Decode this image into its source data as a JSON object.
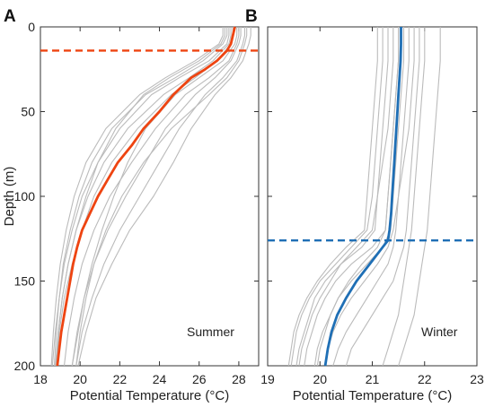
{
  "chart_data": [
    {
      "type": "line",
      "panel_letter": "A",
      "season": "Summer",
      "xlabel": "Potential Temperature (°C)",
      "ylabel": "Depth (m)",
      "xlim": [
        18,
        29
      ],
      "ylim": [
        200,
        0
      ],
      "xticks": [
        "18",
        "20",
        "22",
        "24",
        "26",
        "28"
      ],
      "yticks": [
        "0",
        "50",
        "100",
        "150",
        "200"
      ],
      "colors": {
        "mean": "#ee4411",
        "individual": "#bbbbbb",
        "threshold": "#ee4411"
      },
      "threshold_depth": 14,
      "mean_profile": {
        "depth": [
          0,
          5,
          10,
          14,
          20,
          25,
          30,
          40,
          50,
          60,
          70,
          80,
          90,
          100,
          110,
          120,
          130,
          140,
          150,
          160,
          170,
          180,
          190,
          200
        ],
        "temperature": [
          27.8,
          27.7,
          27.6,
          27.4,
          26.9,
          26.3,
          25.6,
          24.7,
          24.0,
          23.2,
          22.6,
          21.9,
          21.4,
          20.9,
          20.5,
          20.1,
          19.85,
          19.65,
          19.5,
          19.35,
          19.2,
          19.05,
          18.95,
          18.85
        ]
      },
      "profiles": [
        {
          "depth": [
            0,
            5,
            10,
            20,
            30,
            40,
            60,
            80,
            100,
            120,
            140,
            160,
            180,
            200
          ],
          "temperature": [
            27.5,
            27.5,
            27.4,
            26.5,
            25.0,
            23.6,
            22.0,
            20.9,
            20.1,
            19.6,
            19.2,
            18.95,
            18.75,
            18.6
          ]
        },
        {
          "depth": [
            0,
            5,
            10,
            20,
            30,
            40,
            60,
            80,
            100,
            120,
            140,
            160,
            180,
            200
          ],
          "temperature": [
            28.0,
            28.0,
            27.9,
            27.5,
            26.5,
            25.3,
            23.8,
            22.6,
            21.5,
            20.7,
            20.1,
            19.7,
            19.4,
            19.2
          ]
        },
        {
          "depth": [
            0,
            5,
            10,
            20,
            30,
            40,
            60,
            80,
            100,
            120,
            140,
            160,
            180,
            200
          ],
          "temperature": [
            28.3,
            28.3,
            28.2,
            27.9,
            27.2,
            26.3,
            25.0,
            24.0,
            23.0,
            22.0,
            21.2,
            20.6,
            20.1,
            19.8
          ]
        },
        {
          "depth": [
            0,
            5,
            10,
            20,
            30,
            40,
            60,
            80,
            100,
            120,
            140,
            160,
            180,
            200
          ],
          "temperature": [
            27.2,
            27.2,
            27.0,
            25.8,
            24.3,
            23.0,
            21.3,
            20.3,
            19.7,
            19.3,
            19.0,
            18.8,
            18.65,
            18.55
          ]
        },
        {
          "depth": [
            0,
            5,
            10,
            20,
            30,
            40,
            60,
            80,
            100,
            120,
            140,
            160,
            180,
            200
          ],
          "temperature": [
            28.6,
            28.6,
            28.5,
            28.2,
            27.6,
            26.8,
            25.6,
            24.7,
            23.7,
            22.5,
            21.6,
            20.8,
            20.3,
            19.9
          ]
        },
        {
          "depth": [
            0,
            5,
            10,
            20,
            30,
            40,
            60,
            80,
            100,
            120,
            140,
            160,
            180,
            200
          ],
          "temperature": [
            27.7,
            27.7,
            27.6,
            26.9,
            25.8,
            24.6,
            22.9,
            21.6,
            20.7,
            20.1,
            19.6,
            19.2,
            18.95,
            18.8
          ]
        },
        {
          "depth": [
            0,
            5,
            10,
            20,
            30,
            40,
            60,
            80,
            100,
            120,
            140,
            160,
            180,
            200
          ],
          "temperature": [
            27.9,
            27.9,
            27.8,
            27.2,
            26.0,
            24.8,
            23.3,
            22.4,
            21.7,
            21.1,
            20.6,
            20.2,
            19.9,
            19.6
          ]
        },
        {
          "depth": [
            0,
            5,
            10,
            20,
            30,
            40,
            60,
            80,
            100,
            120,
            140,
            160,
            180,
            200
          ],
          "temperature": [
            27.4,
            27.4,
            27.2,
            26.2,
            24.8,
            23.3,
            21.6,
            20.6,
            19.95,
            19.5,
            19.15,
            18.95,
            18.8,
            18.7
          ]
        },
        {
          "depth": [
            0,
            5,
            10,
            20,
            30,
            40,
            60,
            80,
            100,
            120,
            140,
            160,
            180,
            200
          ],
          "temperature": [
            28.1,
            28.1,
            28.0,
            27.6,
            26.8,
            25.8,
            24.3,
            23.3,
            22.3,
            21.4,
            20.7,
            20.2,
            19.85,
            19.6
          ]
        },
        {
          "depth": [
            0,
            5,
            10,
            20,
            30,
            40,
            60,
            80,
            100,
            120,
            140,
            160,
            180,
            200
          ],
          "temperature": [
            27.6,
            27.6,
            27.5,
            26.7,
            25.5,
            24.2,
            22.4,
            21.2,
            20.4,
            19.8,
            19.4,
            19.1,
            18.9,
            18.75
          ]
        },
        {
          "depth": [
            0,
            5,
            10,
            20,
            30,
            40,
            60,
            80,
            100,
            120,
            140,
            160,
            180,
            200
          ],
          "temperature": [
            28.4,
            28.4,
            28.3,
            28.0,
            27.4,
            26.5,
            24.6,
            23.2,
            22.1,
            21.3,
            20.7,
            20.3,
            20.0,
            19.8
          ]
        },
        {
          "depth": [
            0,
            5,
            10,
            20,
            30,
            40,
            60,
            80,
            100,
            120,
            140,
            160,
            180,
            200
          ],
          "temperature": [
            27.3,
            27.3,
            27.1,
            26.0,
            24.5,
            23.2,
            21.8,
            20.9,
            20.3,
            19.8,
            19.4,
            19.1,
            18.9,
            18.8
          ]
        }
      ]
    },
    {
      "type": "line",
      "panel_letter": "B",
      "season": "Winter",
      "xlabel": "Potential Temperature (°C)",
      "ylabel": "",
      "xlim": [
        19,
        23
      ],
      "ylim": [
        200,
        0
      ],
      "xticks": [
        "19",
        "20",
        "21",
        "22",
        "23"
      ],
      "yticks": [
        "0",
        "50",
        "100",
        "150",
        "200"
      ],
      "colors": {
        "mean": "#1f6fb5",
        "individual": "#bbbbbb",
        "threshold": "#1f6fb5"
      },
      "threshold_depth": 126,
      "mean_profile": {
        "depth": [
          0,
          10,
          20,
          30,
          40,
          50,
          60,
          70,
          80,
          90,
          100,
          110,
          120,
          126,
          130,
          140,
          150,
          160,
          170,
          180,
          190,
          200
        ],
        "temperature": [
          21.55,
          21.55,
          21.54,
          21.52,
          21.5,
          21.48,
          21.46,
          21.44,
          21.42,
          21.4,
          21.38,
          21.36,
          21.33,
          21.3,
          21.2,
          20.95,
          20.7,
          20.5,
          20.33,
          20.22,
          20.15,
          20.1
        ]
      },
      "profiles": [
        {
          "depth": [
            0,
            20,
            40,
            60,
            80,
            100,
            120,
            130,
            140,
            150,
            160,
            170,
            180,
            190,
            200
          ],
          "temperature": [
            21.3,
            21.3,
            21.25,
            21.2,
            21.15,
            21.1,
            21.05,
            20.8,
            20.4,
            20.1,
            19.9,
            19.8,
            19.7,
            19.6,
            19.55
          ]
        },
        {
          "depth": [
            0,
            20,
            40,
            60,
            80,
            100,
            120,
            130,
            140,
            150,
            160,
            170,
            180,
            190,
            200
          ],
          "temperature": [
            21.7,
            21.7,
            21.65,
            21.6,
            21.55,
            21.5,
            21.45,
            21.4,
            21.3,
            21.1,
            20.9,
            20.7,
            20.5,
            20.35,
            20.25
          ]
        },
        {
          "depth": [
            0,
            20,
            40,
            60,
            80,
            100,
            120,
            130,
            140,
            150,
            160,
            170,
            180,
            190,
            200
          ],
          "temperature": [
            21.9,
            21.9,
            21.85,
            21.8,
            21.75,
            21.7,
            21.65,
            21.6,
            21.5,
            21.4,
            21.2,
            21.0,
            20.8,
            20.6,
            20.5
          ]
        },
        {
          "depth": [
            0,
            20,
            40,
            60,
            80,
            100,
            120,
            130,
            140,
            150,
            160,
            170,
            180,
            190,
            200
          ],
          "temperature": [
            21.5,
            21.5,
            21.45,
            21.4,
            21.35,
            21.3,
            21.25,
            21.0,
            20.6,
            20.3,
            20.1,
            19.95,
            19.85,
            19.75,
            19.7
          ]
        },
        {
          "depth": [
            0,
            20,
            40,
            60,
            80,
            100,
            120,
            130,
            140,
            150,
            160,
            170,
            180,
            190,
            200
          ],
          "temperature": [
            21.2,
            21.2,
            21.15,
            21.1,
            21.05,
            21.0,
            20.9,
            20.6,
            20.3,
            20.0,
            19.8,
            19.65,
            19.55,
            19.5,
            19.45
          ]
        },
        {
          "depth": [
            0,
            20,
            40,
            60,
            80,
            100,
            120,
            130,
            140,
            150,
            160,
            170,
            180,
            190,
            200
          ],
          "temperature": [
            22.0,
            22.0,
            21.95,
            21.9,
            21.85,
            21.8,
            21.75,
            21.7,
            21.65,
            21.6,
            21.55,
            21.5,
            21.4,
            21.3,
            21.2
          ]
        },
        {
          "depth": [
            0,
            20,
            40,
            60,
            80,
            100,
            120,
            130,
            140,
            150,
            160,
            170,
            180,
            190,
            200
          ],
          "temperature": [
            21.6,
            21.6,
            21.55,
            21.5,
            21.45,
            21.4,
            21.35,
            21.2,
            20.9,
            20.6,
            20.35,
            20.2,
            20.05,
            19.95,
            19.9
          ]
        },
        {
          "depth": [
            0,
            20,
            40,
            60,
            80,
            100,
            120,
            130,
            140,
            150,
            160,
            170,
            180,
            190,
            200
          ],
          "temperature": [
            21.4,
            21.4,
            21.35,
            21.3,
            21.2,
            21.1,
            21.0,
            20.7,
            20.4,
            20.2,
            20.0,
            19.85,
            19.75,
            19.65,
            19.6
          ]
        },
        {
          "depth": [
            0,
            20,
            40,
            60,
            80,
            100,
            120,
            130,
            140,
            150,
            160,
            170,
            180,
            190,
            200
          ],
          "temperature": [
            22.3,
            22.3,
            22.25,
            22.2,
            22.15,
            22.1,
            22.05,
            22.0,
            21.95,
            21.9,
            21.85,
            21.8,
            21.7,
            21.6,
            21.5
          ]
        },
        {
          "depth": [
            0,
            20,
            40,
            60,
            80,
            100,
            120,
            130,
            140,
            150,
            160,
            170,
            180,
            190,
            200
          ],
          "temperature": [
            21.5,
            21.5,
            21.45,
            21.4,
            21.35,
            21.3,
            21.25,
            21.1,
            20.8,
            20.55,
            20.35,
            20.2,
            20.1,
            20.0,
            19.95
          ]
        },
        {
          "depth": [
            0,
            20,
            40,
            60,
            80,
            100,
            120,
            130,
            140,
            150,
            160,
            170,
            180,
            190,
            200
          ],
          "temperature": [
            21.8,
            21.8,
            21.75,
            21.7,
            21.6,
            21.5,
            21.4,
            21.3,
            21.1,
            20.85,
            20.6,
            20.4,
            20.25,
            20.15,
            20.1
          ]
        },
        {
          "depth": [
            0,
            20,
            40,
            60,
            80,
            100,
            120,
            130,
            140,
            150,
            160,
            170,
            180,
            190,
            200
          ],
          "temperature": [
            21.1,
            21.1,
            21.05,
            21.0,
            20.95,
            20.9,
            20.85,
            20.5,
            20.2,
            19.95,
            19.75,
            19.6,
            19.5,
            19.45,
            19.4
          ]
        }
      ]
    }
  ]
}
